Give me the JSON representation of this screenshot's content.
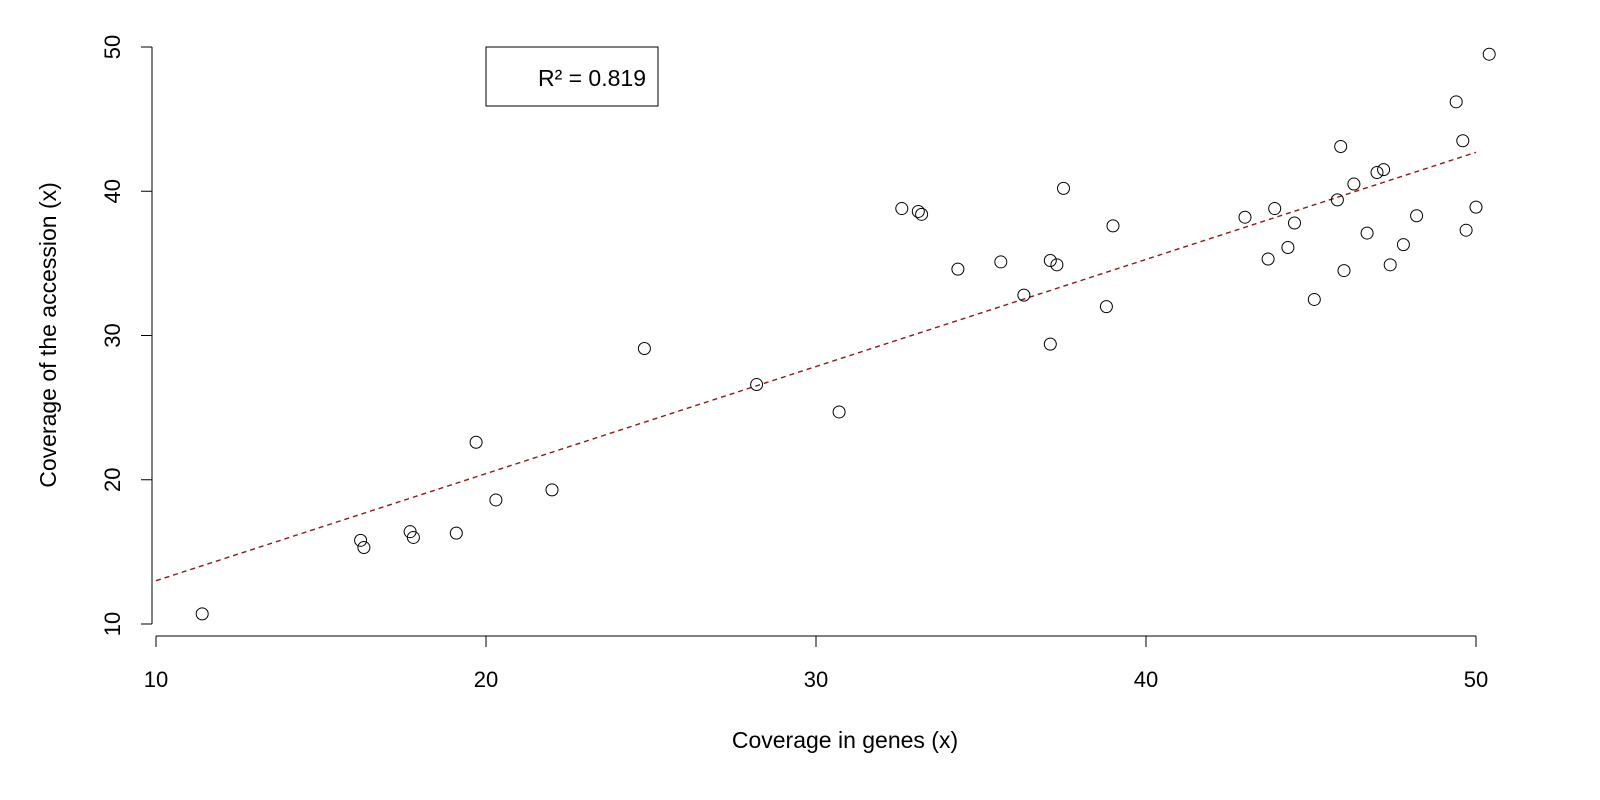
{
  "chart_data": {
    "type": "scatter",
    "title": "",
    "xlabel": "Coverage in genes (x)",
    "ylabel": "Coverage of the accession (x)",
    "xlim": [
      10,
      50
    ],
    "ylim": [
      10,
      50
    ],
    "xticks": [
      10,
      20,
      30,
      40,
      50
    ],
    "yticks": [
      10,
      20,
      30,
      40,
      50
    ],
    "grid": false,
    "point_style": "open-circle",
    "fit_line": {
      "style": "dashed",
      "color": "#8b1a1a",
      "x": [
        10,
        50
      ],
      "y": [
        13.0,
        42.7
      ]
    },
    "legend": {
      "text": "R² = 0.819",
      "position": "top-left"
    },
    "points": {
      "x": [
        11.4,
        16.2,
        16.3,
        17.7,
        17.8,
        19.1,
        19.7,
        20.3,
        22.0,
        24.8,
        28.2,
        30.7,
        32.6,
        33.1,
        33.2,
        34.3,
        35.6,
        36.3,
        37.1,
        37.1,
        37.3,
        37.5,
        38.8,
        39.0,
        43.0,
        43.7,
        43.9,
        44.3,
        44.5,
        45.1,
        45.8,
        45.9,
        46.0,
        46.3,
        46.7,
        47.0,
        47.2,
        47.4,
        47.8,
        48.2,
        49.4,
        49.6,
        49.7,
        50.0,
        50.4
      ],
      "y": [
        10.7,
        15.8,
        15.3,
        16.4,
        16.0,
        16.3,
        22.6,
        18.6,
        19.3,
        29.1,
        26.6,
        24.7,
        38.8,
        38.6,
        38.4,
        34.6,
        35.1,
        32.8,
        35.2,
        29.4,
        34.9,
        40.2,
        32.0,
        37.6,
        38.2,
        35.3,
        38.8,
        36.1,
        37.8,
        32.5,
        39.4,
        43.1,
        34.5,
        40.5,
        37.1,
        41.3,
        41.5,
        34.9,
        36.3,
        38.3,
        46.2,
        43.5,
        37.3,
        38.9,
        49.5
      ]
    }
  }
}
